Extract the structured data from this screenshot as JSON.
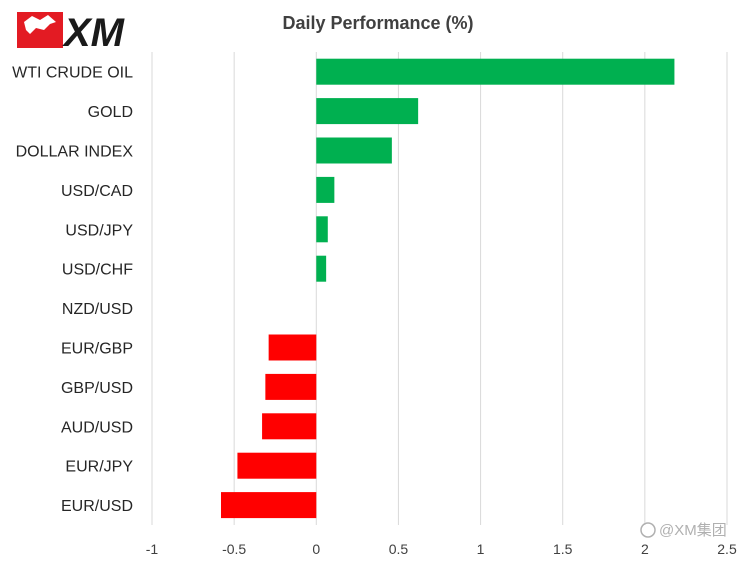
{
  "logo": {
    "text": "XM"
  },
  "watermark": {
    "text": "@XM集团"
  },
  "colors": {
    "positive": "#00b050",
    "negative": "#ff0000",
    "logo_red": "#e31b23"
  },
  "chart_data": {
    "type": "bar",
    "orientation": "horizontal",
    "title": "Daily Performance  (%)",
    "categories": [
      "WTI CRUDE OIL",
      "GOLD",
      "DOLLAR INDEX",
      "USD/CAD",
      "USD/JPY",
      "USD/CHF",
      "NZD/USD",
      "EUR/GBP",
      "GBP/USD",
      "AUD/USD",
      "EUR/JPY",
      "EUR/USD"
    ],
    "values": [
      2.18,
      0.62,
      0.46,
      0.11,
      0.07,
      0.06,
      0.0,
      -0.29,
      -0.31,
      -0.33,
      -0.48,
      -0.58
    ],
    "xlim": [
      -1,
      2.5
    ],
    "xticks": [
      -1,
      -0.5,
      0,
      0.5,
      1,
      1.5,
      2,
      2.5
    ],
    "xtick_labels": [
      "-1",
      "-0.5",
      "0",
      "0.5",
      "1",
      "1.5",
      "2",
      "2.5"
    ],
    "grid": true,
    "legend": "none"
  }
}
